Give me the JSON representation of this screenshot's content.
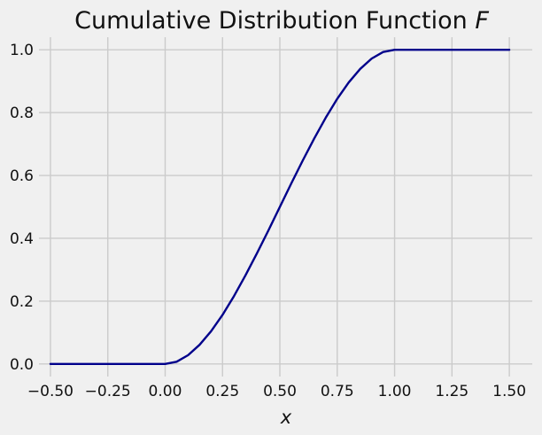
{
  "chart_data": {
    "type": "line",
    "title": {
      "main": "Cumulative Distribution Function ",
      "variable": "F"
    },
    "xlabel": "x",
    "ylabel": "",
    "xlim": [
      -0.55,
      1.6
    ],
    "ylim": [
      -0.04,
      1.04
    ],
    "x_ticks": [
      -0.5,
      -0.25,
      0.0,
      0.25,
      0.5,
      0.75,
      1.0,
      1.25,
      1.5
    ],
    "x_tick_labels": [
      "−0.50",
      "−0.25",
      "0.00",
      "0.25",
      "0.50",
      "0.75",
      "1.00",
      "1.25",
      "1.50"
    ],
    "y_ticks": [
      0.0,
      0.2,
      0.4,
      0.6,
      0.8,
      1.0
    ],
    "y_tick_labels": [
      "0.0",
      "0.2",
      "0.4",
      "0.6",
      "0.8",
      "1.0"
    ],
    "grid": true,
    "legend": "none",
    "colors": {
      "background": "#f0f0f0",
      "grid": "#cbcbcb",
      "line": "#00008b",
      "text": "#111111"
    },
    "series": [
      {
        "x": [
          -0.5,
          -0.25,
          0.0,
          0.05,
          0.1,
          0.15,
          0.2,
          0.25,
          0.3,
          0.35,
          0.4,
          0.45,
          0.5,
          0.55,
          0.6,
          0.65,
          0.7,
          0.75,
          0.8,
          0.85,
          0.9,
          0.95,
          1.0,
          1.25,
          1.5
        ],
        "y": [
          0.0,
          0.0,
          0.0,
          0.007,
          0.028,
          0.061,
          0.104,
          0.156,
          0.216,
          0.282,
          0.352,
          0.425,
          0.5,
          0.575,
          0.648,
          0.718,
          0.784,
          0.844,
          0.896,
          0.939,
          0.972,
          0.993,
          1.0,
          1.0,
          1.0
        ]
      }
    ]
  }
}
